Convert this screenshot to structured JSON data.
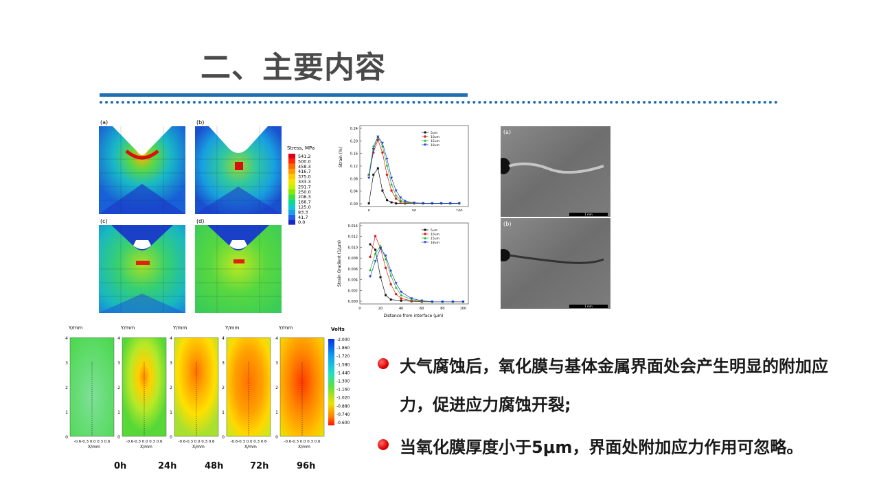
{
  "slide": {
    "title": "二、主要内容"
  },
  "fem_figure": {
    "panels": [
      "(a)",
      "(b)",
      "(c)",
      "(d)"
    ],
    "legend_title": "Stress, MPa",
    "legend_values": [
      "541.2",
      "500.0",
      "458.3",
      "416.7",
      "375.0",
      "333.3",
      "291.7",
      "250.0",
      "208.3",
      "166.7",
      "125.0",
      "83.3",
      "41.7",
      "0.0"
    ],
    "legend_colors": [
      "#e0001a",
      "#ff2a00",
      "#ff6a00",
      "#ff9a00",
      "#ffc800",
      "#f2e600",
      "#c8f000",
      "#88e800",
      "#3ce13c",
      "#10d890",
      "#10c8d0",
      "#1aa0e8",
      "#2060e8",
      "#1a28c8"
    ]
  },
  "strain_chart": {
    "ylabel": "Strain (%)",
    "yticks": [
      "0.24",
      "0.20",
      "0.16",
      "0.12",
      "0.08",
      "0.04",
      "0.00"
    ],
    "xticks": [
      "0",
      "50",
      "100"
    ],
    "legend": [
      "5um",
      "10um",
      "15um",
      "18um"
    ]
  },
  "gradient_chart": {
    "ylabel": "Strain Gradient (1/μm)",
    "xlabel": "Distance from interface (μm)",
    "yticks": [
      "0.014",
      "0.012",
      "0.010",
      "0.008",
      "0.006",
      "0.004",
      "0.002",
      "0.000"
    ],
    "xticks": [
      "0",
      "20",
      "40",
      "60",
      "80",
      "100"
    ],
    "legend": [
      "5um",
      "10um",
      "15um",
      "18um"
    ]
  },
  "sem_figure": {
    "panels": [
      "(a)",
      "(b)"
    ],
    "scalebar": "1 mm"
  },
  "potential_maps": {
    "ylabel": "Y/mm",
    "xlabel": "X/mm",
    "yticks": [
      "4",
      "3",
      "2",
      "1",
      "0"
    ],
    "xticks": "-0.6-0.3 0.0 0.3 0.6",
    "colorbar_title": "Volts",
    "colorbar_values": [
      "-2.000",
      "-1.860",
      "-1.720",
      "-1.580",
      "-1.440",
      "-1.300",
      "-1.160",
      "-1.020",
      "-0.880",
      "-0.740",
      "-0.600"
    ],
    "times": [
      "0h",
      "24h",
      "48h",
      "72h",
      "96h"
    ]
  },
  "bullets": [
    "大气腐蚀后，氧化膜与基体金属界面处会产生明显的附加应力，促进应力腐蚀开裂;",
    "当氧化膜厚度小于5μm，界面处附加应力作用可忽略。"
  ]
}
